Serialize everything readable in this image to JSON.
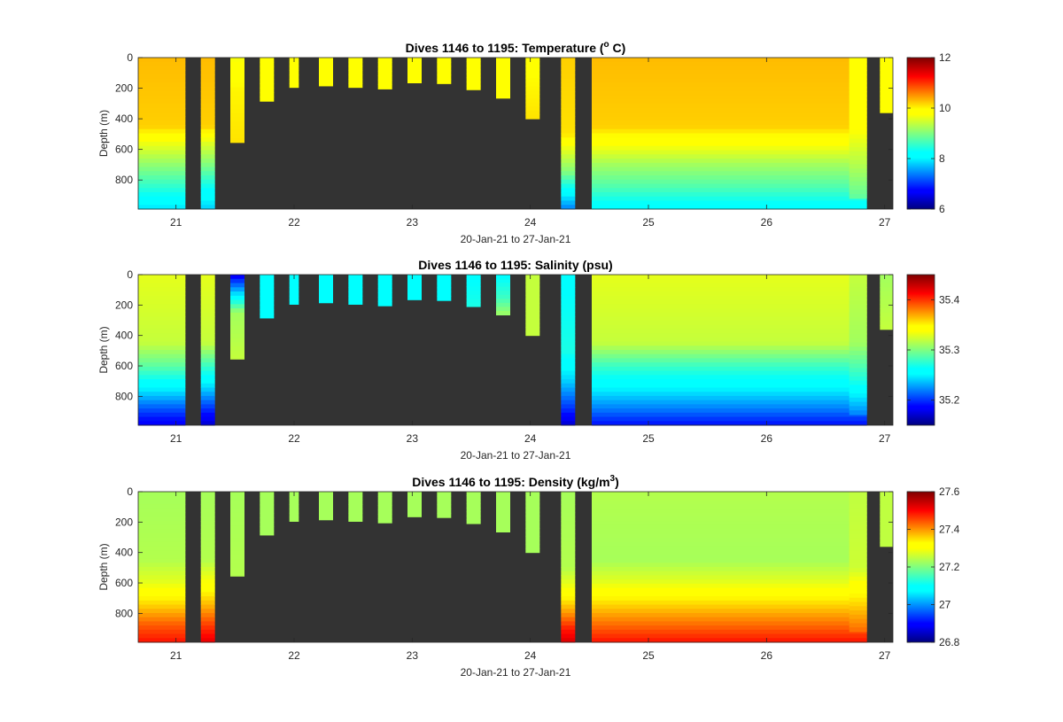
{
  "chart_data": [
    {
      "type": "heatmap",
      "title_main": "Dives 1146 to 1195: Temperature (",
      "title_sup": "o",
      "title_tail": " C)",
      "xlabel": "20-Jan-21 to 27-Jan-21",
      "ylabel": "Depth (m)",
      "xlim": [
        20.68,
        27.07
      ],
      "ylim": [
        0,
        990
      ],
      "x_ticks": [
        21,
        22,
        23,
        24,
        25,
        26,
        27
      ],
      "y_ticks": [
        0,
        200,
        400,
        600,
        800
      ],
      "colorbar": {
        "range": [
          6,
          12
        ],
        "ticks": [
          6,
          8,
          10,
          12
        ],
        "colormap": "jet"
      },
      "background_color": "#333333",
      "profiles": [
        {
          "x0": 20.68,
          "x1": 21.08,
          "max_depth": 990,
          "profile": [
            [
              0,
              10.3
            ],
            [
              450,
              10.2
            ],
            [
              550,
              9.7
            ],
            [
              700,
              9.1
            ],
            [
              850,
              8.5
            ],
            [
              990,
              7.9
            ]
          ]
        },
        {
          "x0": 21.21,
          "x1": 21.33,
          "max_depth": 990,
          "profile": [
            [
              0,
              10.3
            ],
            [
              450,
              10.2
            ],
            [
              550,
              9.6
            ],
            [
              700,
              9.0
            ],
            [
              850,
              8.3
            ],
            [
              990,
              7.8
            ]
          ]
        },
        {
          "x0": 21.46,
          "x1": 21.58,
          "max_depth": 555,
          "profile": [
            [
              0,
              9.7
            ],
            [
              200,
              10.0
            ],
            [
              555,
              10.1
            ]
          ]
        },
        {
          "x0": 21.71,
          "x1": 21.83,
          "max_depth": 285,
          "profile": [
            [
              0,
              9.8
            ],
            [
              285,
              9.9
            ]
          ]
        },
        {
          "x0": 21.96,
          "x1": 22.04,
          "max_depth": 195,
          "profile": [
            [
              0,
              9.8
            ],
            [
              195,
              9.9
            ]
          ]
        },
        {
          "x0": 22.21,
          "x1": 22.33,
          "max_depth": 185,
          "profile": [
            [
              0,
              9.8
            ],
            [
              185,
              9.9
            ]
          ]
        },
        {
          "x0": 22.46,
          "x1": 22.58,
          "max_depth": 195,
          "profile": [
            [
              0,
              9.8
            ],
            [
              195,
              9.9
            ]
          ]
        },
        {
          "x0": 22.71,
          "x1": 22.83,
          "max_depth": 205,
          "profile": [
            [
              0,
              9.8
            ],
            [
              205,
              9.9
            ]
          ]
        },
        {
          "x0": 22.96,
          "x1": 23.08,
          "max_depth": 165,
          "profile": [
            [
              0,
              9.8
            ],
            [
              165,
              9.9
            ]
          ]
        },
        {
          "x0": 23.21,
          "x1": 23.33,
          "max_depth": 170,
          "profile": [
            [
              0,
              9.8
            ],
            [
              170,
              9.9
            ]
          ]
        },
        {
          "x0": 23.46,
          "x1": 23.58,
          "max_depth": 210,
          "profile": [
            [
              0,
              9.8
            ],
            [
              210,
              9.9
            ]
          ]
        },
        {
          "x0": 23.71,
          "x1": 23.83,
          "max_depth": 265,
          "profile": [
            [
              0,
              9.8
            ],
            [
              265,
              9.9
            ]
          ]
        },
        {
          "x0": 23.96,
          "x1": 24.08,
          "max_depth": 400,
          "profile": [
            [
              0,
              9.9
            ],
            [
              400,
              10.1
            ]
          ]
        },
        {
          "x0": 24.26,
          "x1": 24.38,
          "max_depth": 990,
          "profile": [
            [
              0,
              10.2
            ],
            [
              500,
              10.1
            ],
            [
              600,
              9.6
            ],
            [
              750,
              9.0
            ],
            [
              850,
              8.3
            ],
            [
              990,
              7.4
            ]
          ]
        },
        {
          "x0": 24.52,
          "x1": 26.85,
          "max_depth": 990,
          "profile": [
            [
              0,
              10.3
            ],
            [
              450,
              10.2
            ],
            [
              580,
              9.7
            ],
            [
              700,
              9.2
            ],
            [
              850,
              8.7
            ],
            [
              990,
              8.1
            ]
          ]
        },
        {
          "x0": 26.7,
          "x1": 26.85,
          "max_depth": 920,
          "profile": [
            [
              0,
              9.8
            ],
            [
              450,
              9.8
            ],
            [
              700,
              9.3
            ],
            [
              920,
              8.8
            ]
          ]
        },
        {
          "x0": 26.96,
          "x1": 27.07,
          "max_depth": 360,
          "profile": [
            [
              0,
              9.8
            ],
            [
              360,
              9.9
            ]
          ]
        }
      ]
    },
    {
      "type": "heatmap",
      "title_main": "Dives 1146 to 1195: Salinity (psu)",
      "title_sup": "",
      "title_tail": "",
      "xlabel": "20-Jan-21 to 27-Jan-21",
      "ylabel": "Depth (m)",
      "xlim": [
        20.68,
        27.07
      ],
      "ylim": [
        0,
        990
      ],
      "x_ticks": [
        21,
        22,
        23,
        24,
        25,
        26,
        27
      ],
      "y_ticks": [
        0,
        200,
        400,
        600,
        800
      ],
      "colorbar": {
        "range": [
          35.15,
          35.45
        ],
        "ticks": [
          35.2,
          35.3,
          35.4
        ],
        "colormap": "jet"
      },
      "background_color": "#333333",
      "profiles": [
        {
          "x0": 20.68,
          "x1": 21.08,
          "max_depth": 990,
          "profile": [
            [
              0,
              35.33
            ],
            [
              450,
              35.32
            ],
            [
              600,
              35.29
            ],
            [
              750,
              35.25
            ],
            [
              880,
              35.21
            ],
            [
              990,
              35.18
            ]
          ]
        },
        {
          "x0": 21.21,
          "x1": 21.33,
          "max_depth": 990,
          "profile": [
            [
              0,
              35.33
            ],
            [
              450,
              35.32
            ],
            [
              600,
              35.28
            ],
            [
              750,
              35.24
            ],
            [
              880,
              35.2
            ],
            [
              990,
              35.17
            ]
          ]
        },
        {
          "x0": 21.46,
          "x1": 21.58,
          "max_depth": 555,
          "profile": [
            [
              0,
              35.18
            ],
            [
              100,
              35.23
            ],
            [
              250,
              35.31
            ],
            [
              555,
              35.32
            ]
          ]
        },
        {
          "x0": 21.71,
          "x1": 21.83,
          "max_depth": 285,
          "profile": [
            [
              0,
              35.26
            ],
            [
              285,
              35.26
            ]
          ]
        },
        {
          "x0": 21.96,
          "x1": 22.04,
          "max_depth": 195,
          "profile": [
            [
              0,
              35.26
            ],
            [
              195,
              35.26
            ]
          ]
        },
        {
          "x0": 22.21,
          "x1": 22.33,
          "max_depth": 185,
          "profile": [
            [
              0,
              35.26
            ],
            [
              185,
              35.26
            ]
          ]
        },
        {
          "x0": 22.46,
          "x1": 22.58,
          "max_depth": 195,
          "profile": [
            [
              0,
              35.26
            ],
            [
              195,
              35.26
            ]
          ]
        },
        {
          "x0": 22.71,
          "x1": 22.83,
          "max_depth": 205,
          "profile": [
            [
              0,
              35.26
            ],
            [
              205,
              35.26
            ]
          ]
        },
        {
          "x0": 22.96,
          "x1": 23.08,
          "max_depth": 165,
          "profile": [
            [
              0,
              35.26
            ],
            [
              165,
              35.26
            ]
          ]
        },
        {
          "x0": 23.21,
          "x1": 23.33,
          "max_depth": 170,
          "profile": [
            [
              0,
              35.26
            ],
            [
              170,
              35.26
            ]
          ]
        },
        {
          "x0": 23.46,
          "x1": 23.58,
          "max_depth": 210,
          "profile": [
            [
              0,
              35.26
            ],
            [
              210,
              35.27
            ]
          ]
        },
        {
          "x0": 23.71,
          "x1": 23.83,
          "max_depth": 265,
          "profile": [
            [
              0,
              35.26
            ],
            [
              150,
              35.28
            ],
            [
              265,
              35.31
            ]
          ]
        },
        {
          "x0": 23.96,
          "x1": 24.08,
          "max_depth": 400,
          "profile": [
            [
              0,
              35.32
            ],
            [
              400,
              35.32
            ]
          ]
        },
        {
          "x0": 24.26,
          "x1": 24.38,
          "max_depth": 990,
          "profile": [
            [
              0,
              35.26
            ],
            [
              500,
              35.27
            ],
            [
              700,
              35.24
            ],
            [
              880,
              35.2
            ],
            [
              990,
              35.17
            ]
          ]
        },
        {
          "x0": 24.52,
          "x1": 26.85,
          "max_depth": 990,
          "profile": [
            [
              0,
              35.33
            ],
            [
              450,
              35.32
            ],
            [
              600,
              35.28
            ],
            [
              750,
              35.25
            ],
            [
              880,
              35.22
            ],
            [
              990,
              35.19
            ]
          ]
        },
        {
          "x0": 26.7,
          "x1": 26.85,
          "max_depth": 920,
          "profile": [
            [
              0,
              35.32
            ],
            [
              450,
              35.31
            ],
            [
              700,
              35.27
            ],
            [
              920,
              35.22
            ]
          ]
        },
        {
          "x0": 26.96,
          "x1": 27.07,
          "max_depth": 360,
          "profile": [
            [
              0,
              35.31
            ],
            [
              360,
              35.32
            ]
          ]
        }
      ]
    },
    {
      "type": "heatmap",
      "title_main": "Dives 1146 to 1195: Density (kg/m",
      "title_sup": "3",
      "title_tail": ")",
      "xlabel": "20-Jan-21 to 27-Jan-21",
      "ylabel": "Depth (m)",
      "xlim": [
        20.68,
        27.07
      ],
      "ylim": [
        0,
        990
      ],
      "x_ticks": [
        21,
        22,
        23,
        24,
        25,
        26,
        27
      ],
      "y_ticks": [
        0,
        200,
        400,
        600,
        800
      ],
      "colorbar": {
        "range": [
          26.8,
          27.6
        ],
        "ticks": [
          26.8,
          27,
          27.2,
          27.4,
          27.6
        ],
        "colormap": "jet"
      },
      "background_color": "#333333",
      "profiles": [
        {
          "x0": 20.68,
          "x1": 21.08,
          "max_depth": 990,
          "profile": [
            [
              0,
              27.23
            ],
            [
              450,
              27.24
            ],
            [
              600,
              27.28
            ],
            [
              750,
              27.36
            ],
            [
              880,
              27.44
            ],
            [
              990,
              27.49
            ]
          ]
        },
        {
          "x0": 21.21,
          "x1": 21.33,
          "max_depth": 990,
          "profile": [
            [
              0,
              27.23
            ],
            [
              450,
              27.24
            ],
            [
              600,
              27.3
            ],
            [
              750,
              27.38
            ],
            [
              880,
              27.46
            ],
            [
              990,
              27.52
            ]
          ]
        },
        {
          "x0": 21.46,
          "x1": 21.58,
          "max_depth": 555,
          "profile": [
            [
              0,
              27.23
            ],
            [
              555,
              27.24
            ]
          ]
        },
        {
          "x0": 21.71,
          "x1": 21.83,
          "max_depth": 285,
          "profile": [
            [
              0,
              27.23
            ],
            [
              285,
              27.23
            ]
          ]
        },
        {
          "x0": 21.96,
          "x1": 22.04,
          "max_depth": 195,
          "profile": [
            [
              0,
              27.23
            ],
            [
              195,
              27.23
            ]
          ]
        },
        {
          "x0": 22.21,
          "x1": 22.33,
          "max_depth": 185,
          "profile": [
            [
              0,
              27.23
            ],
            [
              185,
              27.23
            ]
          ]
        },
        {
          "x0": 22.46,
          "x1": 22.58,
          "max_depth": 195,
          "profile": [
            [
              0,
              27.23
            ],
            [
              195,
              27.23
            ]
          ]
        },
        {
          "x0": 22.71,
          "x1": 22.83,
          "max_depth": 205,
          "profile": [
            [
              0,
              27.23
            ],
            [
              205,
              27.23
            ]
          ]
        },
        {
          "x0": 22.96,
          "x1": 23.08,
          "max_depth": 165,
          "profile": [
            [
              0,
              27.23
            ],
            [
              165,
              27.23
            ]
          ]
        },
        {
          "x0": 23.21,
          "x1": 23.33,
          "max_depth": 170,
          "profile": [
            [
              0,
              27.23
            ],
            [
              170,
              27.23
            ]
          ]
        },
        {
          "x0": 23.46,
          "x1": 23.58,
          "max_depth": 210,
          "profile": [
            [
              0,
              27.23
            ],
            [
              210,
              27.23
            ]
          ]
        },
        {
          "x0": 23.71,
          "x1": 23.83,
          "max_depth": 265,
          "profile": [
            [
              0,
              27.23
            ],
            [
              265,
              27.23
            ]
          ]
        },
        {
          "x0": 23.96,
          "x1": 24.08,
          "max_depth": 400,
          "profile": [
            [
              0,
              27.23
            ],
            [
              400,
              27.23
            ]
          ]
        },
        {
          "x0": 24.26,
          "x1": 24.38,
          "max_depth": 990,
          "profile": [
            [
              0,
              27.23
            ],
            [
              500,
              27.24
            ],
            [
              650,
              27.3
            ],
            [
              800,
              27.4
            ],
            [
              900,
              27.48
            ],
            [
              990,
              27.53
            ]
          ]
        },
        {
          "x0": 24.52,
          "x1": 26.85,
          "max_depth": 990,
          "profile": [
            [
              0,
              27.24
            ],
            [
              450,
              27.23
            ],
            [
              600,
              27.28
            ],
            [
              750,
              27.36
            ],
            [
              880,
              27.43
            ],
            [
              990,
              27.49
            ]
          ]
        },
        {
          "x0": 26.7,
          "x1": 26.85,
          "max_depth": 920,
          "profile": [
            [
              0,
              27.25
            ],
            [
              500,
              27.26
            ],
            [
              750,
              27.36
            ],
            [
              920,
              27.43
            ]
          ]
        },
        {
          "x0": 26.96,
          "x1": 27.07,
          "max_depth": 360,
          "profile": [
            [
              0,
              27.25
            ],
            [
              360,
              27.25
            ]
          ]
        }
      ]
    }
  ]
}
